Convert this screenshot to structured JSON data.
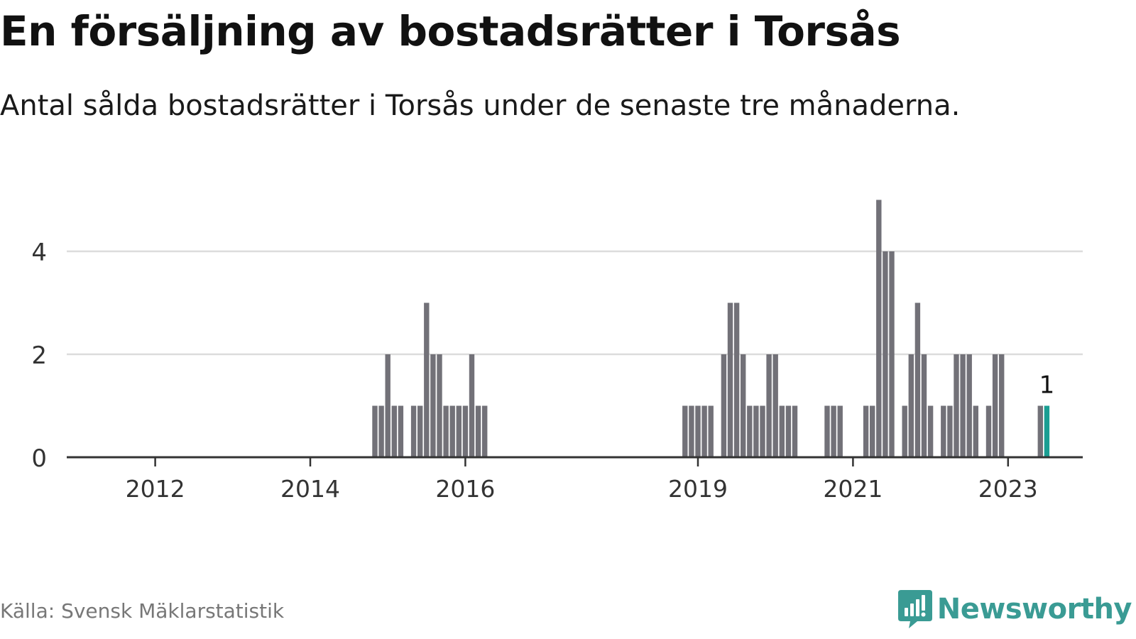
{
  "title": "En försäljning av bostadsrätter i Torsås",
  "subtitle": "Antal sålda bostadsrätter i Torsås under de senaste tre månaderna.",
  "source": "Källa: Svensk Mäklarstatistik",
  "brand": {
    "name": "Newsworthy",
    "icon": "newsworthy-logo-icon",
    "color": "#3a9b94"
  },
  "colors": {
    "bar": "#727178",
    "highlight": "#1a9e93",
    "grid": "#dcdcdc",
    "axis": "#333333"
  },
  "chart_data": {
    "type": "bar",
    "title": "En försäljning av bostadsrätter i Torsås",
    "xlabel": "",
    "ylabel": "",
    "ylim": [
      0,
      5
    ],
    "yticks": [
      0,
      2,
      4
    ],
    "xticks": [
      "2012",
      "2014",
      "2016",
      "2019",
      "2021",
      "2023"
    ],
    "grid": true,
    "unit": "quarterly (rolling three-month) counts",
    "categories": [
      "2014-11",
      "2014-12",
      "2015-01",
      "2015-02",
      "2015-03",
      "2015-05",
      "2015-06",
      "2015-07",
      "2015-08",
      "2015-09",
      "2015-10",
      "2015-11",
      "2015-12",
      "2016-01",
      "2016-02",
      "2016-03",
      "2016-04",
      "2018-11",
      "2018-12",
      "2019-01",
      "2019-02",
      "2019-03",
      "2019-05",
      "2019-06",
      "2019-07",
      "2019-08",
      "2019-09",
      "2019-10",
      "2019-11",
      "2019-12",
      "2020-01",
      "2020-02",
      "2020-03",
      "2020-04",
      "2020-09",
      "2020-10",
      "2020-11",
      "2021-03",
      "2021-04",
      "2021-05",
      "2021-06",
      "2021-07",
      "2021-09",
      "2021-10",
      "2021-11",
      "2021-12",
      "2022-01",
      "2022-03",
      "2022-04",
      "2022-05",
      "2022-06",
      "2022-07",
      "2022-08",
      "2022-10",
      "2022-11",
      "2022-12",
      "2023-06",
      "2023-07"
    ],
    "values": [
      1,
      1,
      2,
      1,
      1,
      1,
      1,
      3,
      2,
      2,
      1,
      1,
      1,
      1,
      2,
      1,
      1,
      1,
      1,
      1,
      1,
      1,
      2,
      3,
      3,
      2,
      1,
      1,
      1,
      2,
      2,
      1,
      1,
      1,
      1,
      1,
      1,
      1,
      1,
      5,
      4,
      4,
      1,
      2,
      3,
      2,
      1,
      1,
      1,
      2,
      2,
      2,
      1,
      1,
      2,
      2,
      1,
      1
    ],
    "highlight_index": 57,
    "annotations": [
      {
        "category": "2023-07",
        "label": "1"
      }
    ]
  }
}
